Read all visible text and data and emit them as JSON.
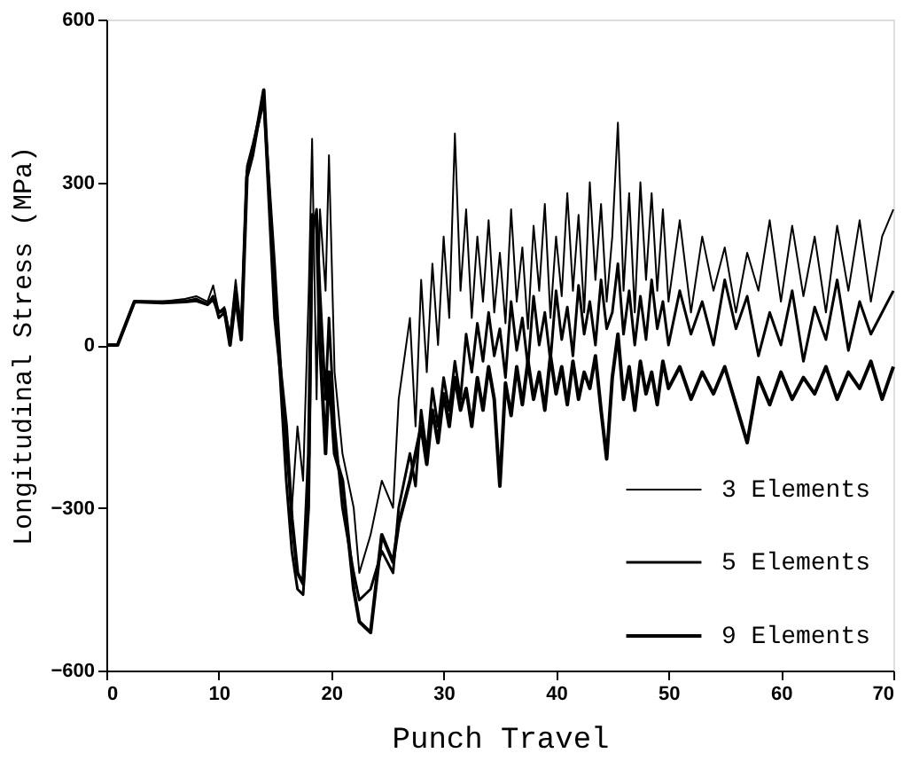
{
  "chart_data": {
    "type": "line",
    "xlabel": "Punch Travel",
    "ylabel": "Longitudinal Stress (MPa)",
    "xlim": [
      0,
      70
    ],
    "xticks": [
      0,
      10,
      20,
      30,
      40,
      50,
      60,
      70
    ],
    "ylim": [
      -600,
      600
    ],
    "yticks": [
      -600,
      -300,
      0,
      300,
      600
    ],
    "grid": false,
    "legend": "bottom right",
    "marker": "none",
    "line_style": "solid",
    "x": [
      0,
      1,
      2.5,
      5,
      7,
      8,
      9,
      9.5,
      10,
      10.5,
      11,
      11.5,
      12,
      12.5,
      13,
      14,
      15,
      16,
      16.5,
      17,
      17.5,
      18,
      18.3,
      18.7,
      19,
      19.5,
      19.8,
      20.3,
      21,
      22,
      22.5,
      23.5,
      24.5,
      25.5,
      26,
      27,
      27.5,
      28,
      28.5,
      29,
      29.5,
      30,
      30.5,
      31,
      31.5,
      32,
      32.5,
      33,
      33.5,
      34,
      34.5,
      35,
      35.5,
      36,
      36.5,
      37,
      37.5,
      38,
      38.5,
      39,
      39.5,
      40,
      40.5,
      41,
      41.5,
      42,
      42.5,
      43,
      43.5,
      44,
      44.5,
      45,
      45.5,
      46,
      46.5,
      47,
      47.5,
      48,
      48.5,
      49,
      49.5,
      50,
      51,
      52,
      53,
      54,
      55,
      56,
      57,
      58,
      59,
      60,
      61,
      62,
      63,
      64,
      65,
      66,
      67,
      68,
      69,
      70
    ],
    "series": [
      {
        "name": "3 Elements",
        "color": "#000000",
        "values": [
          0,
          0,
          80,
          80,
          85,
          90,
          80,
          110,
          60,
          70,
          20,
          120,
          30,
          330,
          370,
          460,
          150,
          -200,
          -300,
          -150,
          -250,
          100,
          380,
          -100,
          250,
          100,
          350,
          -50,
          -200,
          -300,
          -420,
          -350,
          -250,
          -300,
          -100,
          50,
          -150,
          120,
          -50,
          150,
          0,
          200,
          50,
          390,
          100,
          250,
          50,
          200,
          80,
          230,
          60,
          170,
          40,
          250,
          80,
          180,
          30,
          220,
          100,
          260,
          50,
          200,
          90,
          280,
          100,
          240,
          60,
          300,
          120,
          260,
          80,
          200,
          410,
          100,
          280,
          60,
          300,
          120,
          280,
          100,
          250,
          80,
          230,
          60,
          200,
          100,
          180,
          60,
          170,
          100,
          230,
          80,
          220,
          90,
          200,
          60,
          220,
          100,
          230,
          80,
          200,
          250
        ]
      },
      {
        "name": "5 Elements",
        "color": "#000000",
        "values": [
          0,
          0,
          80,
          80,
          80,
          85,
          75,
          90,
          50,
          60,
          10,
          100,
          20,
          320,
          360,
          450,
          100,
          -250,
          -380,
          -450,
          -460,
          -300,
          200,
          250,
          100,
          -100,
          50,
          -150,
          -300,
          -420,
          -470,
          -450,
          -380,
          -420,
          -300,
          -200,
          -260,
          -120,
          -200,
          -80,
          -150,
          -60,
          -120,
          -30,
          -100,
          20,
          -50,
          40,
          -30,
          60,
          -20,
          30,
          -60,
          80,
          -10,
          50,
          -40,
          90,
          0,
          60,
          -30,
          100,
          10,
          70,
          -20,
          110,
          20,
          80,
          0,
          120,
          30,
          60,
          150,
          20,
          100,
          0,
          90,
          10,
          120,
          30,
          80,
          0,
          100,
          20,
          80,
          0,
          120,
          30,
          90,
          -20,
          60,
          0,
          100,
          -30,
          70,
          10,
          120,
          -10,
          80,
          20,
          60,
          100
        ]
      },
      {
        "name": "9 Elements",
        "color": "#000000",
        "values": [
          0,
          0,
          80,
          78,
          80,
          82,
          75,
          85,
          60,
          65,
          0,
          90,
          10,
          310,
          350,
          470,
          50,
          -150,
          -320,
          -420,
          -440,
          -200,
          240,
          230,
          0,
          -200,
          -50,
          -200,
          -250,
          -450,
          -510,
          -530,
          -350,
          -400,
          -330,
          -250,
          -200,
          -150,
          -220,
          -120,
          -180,
          -90,
          -150,
          -60,
          -120,
          -80,
          -150,
          -60,
          -120,
          -40,
          -100,
          -260,
          -70,
          -130,
          -40,
          -110,
          -30,
          -100,
          -50,
          -120,
          -20,
          -90,
          -40,
          -110,
          -30,
          -100,
          -50,
          -80,
          -20,
          -120,
          -210,
          -60,
          20,
          -100,
          -40,
          -120,
          -30,
          -90,
          -50,
          -110,
          -30,
          -80,
          -40,
          -100,
          -50,
          -90,
          -40,
          -110,
          -180,
          -60,
          -110,
          -50,
          -100,
          -60,
          -90,
          -40,
          -100,
          -50,
          -80,
          -30,
          -100,
          -40
        ]
      }
    ]
  }
}
